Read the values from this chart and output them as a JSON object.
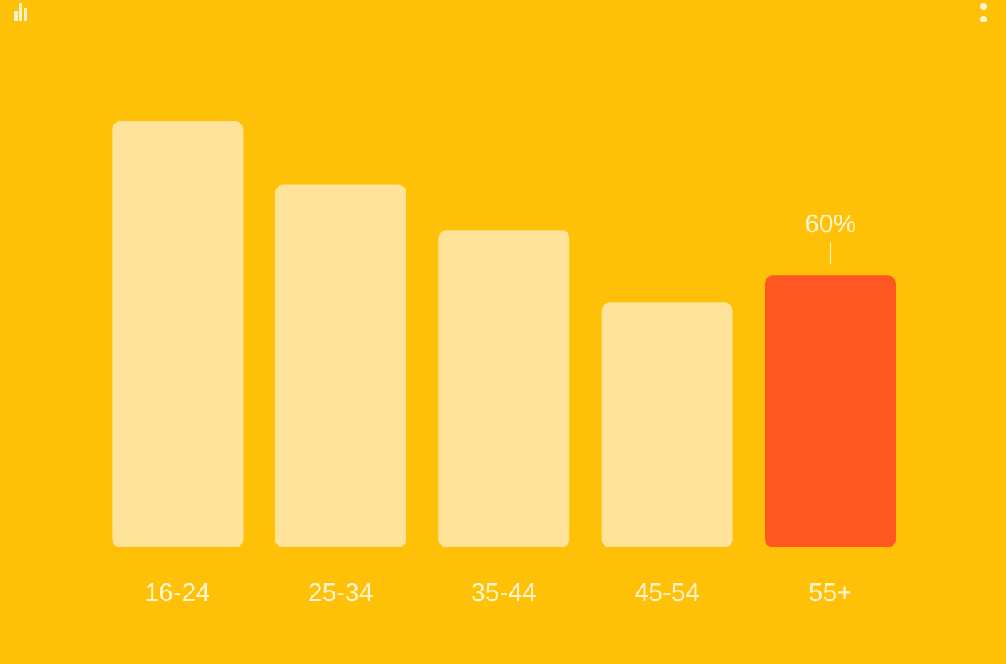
{
  "chart_data": {
    "type": "bar",
    "categories": [
      "16-24",
      "25-34",
      "35-44",
      "45-54",
      "55+"
    ],
    "values": [
      94,
      80,
      70,
      54,
      60
    ],
    "colors": [
      "#ffe39b",
      "#ffe39b",
      "#ffe39b",
      "#ffe39b",
      "#ff5722"
    ],
    "value_labels": [
      null,
      null,
      null,
      null,
      "60%"
    ]
  }
}
